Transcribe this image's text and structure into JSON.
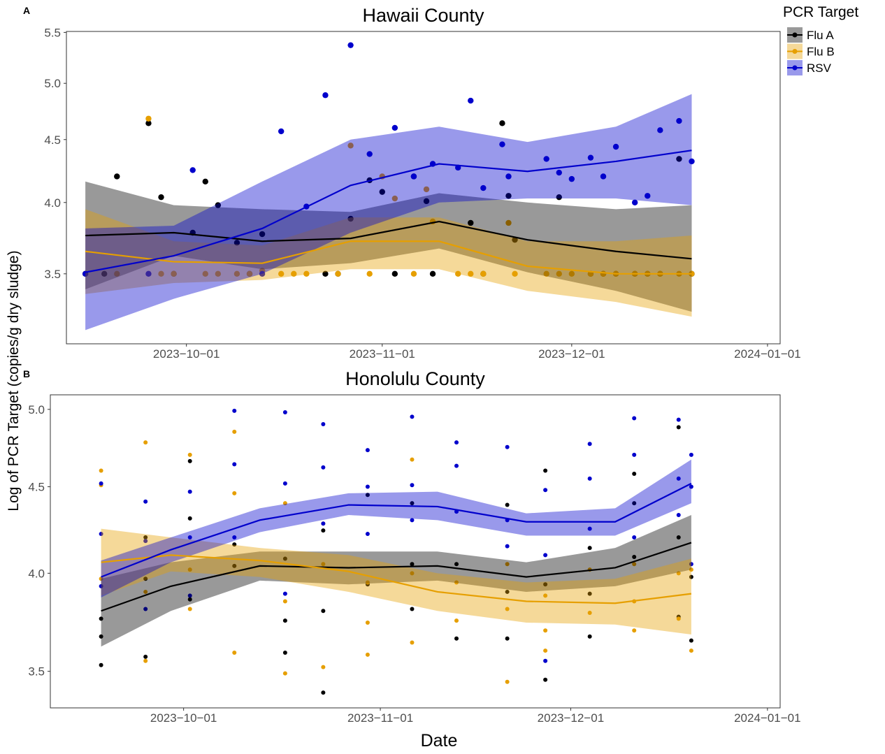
{
  "figure": {
    "ylabel": "Log of PCR Target (copies/g dry sludge)",
    "xlabel": "Date",
    "legend_title": "PCR Target",
    "legend_position": "right",
    "band_opacity": 0.4
  },
  "chart_data": [
    {
      "type": "scatter",
      "panel_label": "A",
      "title": "Hawaii County",
      "log_y": true,
      "grid": false,
      "xlim": [
        "2023-09-12",
        "2024-01-03"
      ],
      "ylim": [
        3.07,
        5.51
      ],
      "xticks": [
        {
          "value": "2023-10-01",
          "label": "2023−10−01"
        },
        {
          "value": "2023-11-01",
          "label": "2023−11−01"
        },
        {
          "value": "2023-12-01",
          "label": "2023−12−01"
        },
        {
          "value": "2024-01-01",
          "label": "2024−01−01"
        }
      ],
      "yticks": [
        3.5,
        {
          "value": 4,
          "label": "4.0"
        },
        4.5,
        {
          "value": 5,
          "label": "5.0"
        },
        5.5
      ],
      "series": [
        {
          "name": "Flu A",
          "color": "#000000",
          "x": [
            "2023-09-15",
            "2023-09-18",
            "2023-09-20",
            "2023-09-25",
            "2023-09-27",
            "2023-09-29",
            "2023-10-02",
            "2023-10-04",
            "2023-10-06",
            "2023-10-09",
            "2023-10-11",
            "2023-10-13",
            "2023-10-23",
            "2023-10-25",
            "2023-10-27",
            "2023-10-30",
            "2023-11-01",
            "2023-11-03",
            "2023-11-06",
            "2023-11-08",
            "2023-11-09",
            "2023-11-15",
            "2023-11-17",
            "2023-11-20",
            "2023-11-21",
            "2023-11-22",
            "2023-11-29",
            "2023-12-04",
            "2023-12-06",
            "2023-12-08",
            "2023-12-11",
            "2023-12-13",
            "2023-12-15",
            "2023-12-18",
            "2023-12-20"
          ],
          "values": [
            3.5,
            3.5,
            4.2,
            4.64,
            4.04,
            3.5,
            3.78,
            4.16,
            3.98,
            3.71,
            3.5,
            3.77,
            3.5,
            3.5,
            3.88,
            4.17,
            4.08,
            3.5,
            4.2,
            4.01,
            3.5,
            3.85,
            3.5,
            4.64,
            4.05,
            3.73,
            4.04,
            3.5,
            3.5,
            3.5,
            3.5,
            3.5,
            3.5,
            4.34,
            3.5
          ],
          "smooth": {
            "x": [
              "2023-09-15",
              "2023-09-29",
              "2023-10-13",
              "2023-10-27",
              "2023-11-10",
              "2023-11-24",
              "2023-12-08",
              "2023-12-20"
            ],
            "fit": [
              3.76,
              3.78,
              3.72,
              3.74,
              3.86,
              3.73,
              3.65,
              3.6
            ],
            "upper": [
              4.16,
              3.98,
              3.95,
              3.93,
              4.07,
              4.0,
              3.95,
              3.98
            ],
            "lower": [
              3.4,
              3.62,
              3.53,
              3.57,
              3.67,
              3.51,
              3.39,
              3.26
            ]
          }
        },
        {
          "name": "Flu B",
          "color": "#E69F00",
          "x": [
            "2023-09-15",
            "2023-09-20",
            "2023-09-25",
            "2023-09-27",
            "2023-09-29",
            "2023-10-04",
            "2023-10-06",
            "2023-10-09",
            "2023-10-11",
            "2023-10-13",
            "2023-10-16",
            "2023-10-18",
            "2023-10-20",
            "2023-10-25",
            "2023-10-27",
            "2023-10-30",
            "2023-11-01",
            "2023-11-03",
            "2023-11-06",
            "2023-11-08",
            "2023-11-09",
            "2023-11-13",
            "2023-11-15",
            "2023-11-17",
            "2023-11-21",
            "2023-11-22",
            "2023-11-27",
            "2023-11-29",
            "2023-12-01",
            "2023-12-04",
            "2023-12-06",
            "2023-12-08",
            "2023-12-11",
            "2023-12-13",
            "2023-12-15",
            "2023-12-18",
            "2023-12-20"
          ],
          "values": [
            3.5,
            3.5,
            4.68,
            3.5,
            3.5,
            3.5,
            3.5,
            3.5,
            3.5,
            3.52,
            3.5,
            3.5,
            3.5,
            3.5,
            4.45,
            3.5,
            4.2,
            4.03,
            3.5,
            4.1,
            3.86,
            3.5,
            3.5,
            3.5,
            3.85,
            3.5,
            3.5,
            3.5,
            3.5,
            3.5,
            3.5,
            3.5,
            3.5,
            3.5,
            3.5,
            3.5,
            3.5
          ],
          "smooth": {
            "x": [
              "2023-09-15",
              "2023-09-29",
              "2023-10-13",
              "2023-10-27",
              "2023-11-10",
              "2023-11-24",
              "2023-12-08",
              "2023-12-20"
            ],
            "fit": [
              3.65,
              3.58,
              3.57,
              3.72,
              3.72,
              3.55,
              3.5,
              3.5
            ],
            "upper": [
              3.95,
              3.72,
              3.69,
              3.89,
              3.89,
              3.72,
              3.72,
              3.76
            ],
            "lower": [
              3.37,
              3.44,
              3.46,
              3.53,
              3.53,
              3.39,
              3.32,
              3.23
            ]
          }
        },
        {
          "name": "RSV",
          "color": "#0000CC",
          "x": [
            "2023-09-15",
            "2023-09-25",
            "2023-10-02",
            "2023-10-13",
            "2023-10-16",
            "2023-10-20",
            "2023-10-23",
            "2023-10-27",
            "2023-10-30",
            "2023-11-03",
            "2023-11-06",
            "2023-11-09",
            "2023-11-13",
            "2023-11-15",
            "2023-11-17",
            "2023-11-20",
            "2023-11-21",
            "2023-11-27",
            "2023-11-29",
            "2023-12-01",
            "2023-12-04",
            "2023-12-06",
            "2023-12-08",
            "2023-12-11",
            "2023-12-13",
            "2023-12-15",
            "2023-12-18",
            "2023-12-20"
          ],
          "values": [
            3.5,
            3.5,
            4.25,
            3.5,
            4.57,
            3.97,
            4.89,
            5.37,
            4.38,
            4.6,
            4.2,
            4.3,
            4.27,
            4.84,
            4.11,
            4.46,
            4.2,
            4.34,
            4.23,
            4.18,
            4.35,
            4.2,
            4.44,
            4.0,
            4.05,
            4.58,
            4.66,
            4.32
          ],
          "smooth": {
            "x": [
              "2023-09-15",
              "2023-09-29",
              "2023-10-13",
              "2023-10-27",
              "2023-11-10",
              "2023-11-24",
              "2023-12-08",
              "2023-12-20"
            ],
            "fit": [
              3.51,
              3.62,
              3.81,
              4.13,
              4.3,
              4.24,
              4.32,
              4.41
            ],
            "upper": [
              3.81,
              3.83,
              4.16,
              4.5,
              4.61,
              4.48,
              4.61,
              4.9
            ],
            "lower": [
              3.15,
              3.34,
              3.5,
              3.78,
              4.0,
              4.03,
              4.03,
              3.98
            ]
          }
        }
      ]
    },
    {
      "type": "scatter",
      "panel_label": "B",
      "title": "Honolulu County",
      "log_y": true,
      "grid": false,
      "xlim": [
        "2023-09-10",
        "2024-01-03"
      ],
      "ylim": [
        3.33,
        5.1
      ],
      "xticks": [
        {
          "value": "2023-10-01",
          "label": "2023−10−01"
        },
        {
          "value": "2023-11-01",
          "label": "2023−11−01"
        },
        {
          "value": "2023-12-01",
          "label": "2023−12−01"
        },
        {
          "value": "2024-01-01",
          "label": "2024−01−01"
        }
      ],
      "yticks": [
        3.5,
        {
          "value": 4,
          "label": "4.0"
        },
        4.5,
        {
          "value": 5,
          "label": "5.0"
        }
      ],
      "series": [
        {
          "name": "Flu A",
          "color": "#000000",
          "x": [
            "2023-09-18",
            "2023-09-18",
            "2023-09-18",
            "2023-09-25",
            "2023-09-25",
            "2023-09-25",
            "2023-10-02",
            "2023-10-02",
            "2023-10-02",
            "2023-10-09",
            "2023-10-09",
            "2023-10-17",
            "2023-10-17",
            "2023-10-17",
            "2023-10-23",
            "2023-10-23",
            "2023-10-23",
            "2023-10-30",
            "2023-10-30",
            "2023-11-06",
            "2023-11-06",
            "2023-11-06",
            "2023-11-13",
            "2023-11-13",
            "2023-11-21",
            "2023-11-21",
            "2023-11-21",
            "2023-11-27",
            "2023-11-27",
            "2023-11-27",
            "2023-12-04",
            "2023-12-04",
            "2023-12-04",
            "2023-12-11",
            "2023-12-11",
            "2023-12-11",
            "2023-12-18",
            "2023-12-18",
            "2023-12-18",
            "2023-12-20",
            "2023-12-20"
          ],
          "values": [
            3.67,
            3.76,
            3.53,
            4.2,
            3.97,
            3.57,
            4.31,
            4.66,
            3.86,
            4.16,
            4.04,
            3.59,
            4.08,
            3.75,
            3.8,
            3.4,
            4.24,
            3.94,
            4.45,
            4.05,
            3.81,
            4.4,
            3.66,
            4.05,
            4.39,
            3.9,
            3.66,
            3.46,
            4.6,
            3.94,
            3.67,
            4.14,
            3.89,
            4.4,
            4.58,
            4.09,
            4.88,
            4.2,
            3.77,
            3.65,
            3.98
          ],
          "smooth": {
            "x": [
              "2023-09-18",
              "2023-09-29",
              "2023-10-13",
              "2023-10-27",
              "2023-11-10",
              "2023-11-24",
              "2023-12-08",
              "2023-12-20"
            ],
            "fit": [
              3.8,
              3.93,
              4.04,
              4.03,
              4.04,
              3.98,
              4.03,
              4.17
            ],
            "upper": [
              3.97,
              4.06,
              4.12,
              4.12,
              4.12,
              4.06,
              4.14,
              4.33
            ],
            "lower": [
              3.62,
              3.8,
              3.96,
              3.94,
              3.96,
              3.9,
              3.93,
              4.02
            ]
          }
        },
        {
          "name": "Flu B",
          "color": "#E69F00",
          "x": [
            "2023-09-18",
            "2023-09-18",
            "2023-09-18",
            "2023-09-25",
            "2023-09-25",
            "2023-09-25",
            "2023-10-02",
            "2023-10-02",
            "2023-10-02",
            "2023-10-09",
            "2023-10-09",
            "2023-10-09",
            "2023-10-17",
            "2023-10-17",
            "2023-10-17",
            "2023-10-23",
            "2023-10-23",
            "2023-10-23",
            "2023-10-30",
            "2023-10-30",
            "2023-10-30",
            "2023-11-06",
            "2023-11-06",
            "2023-11-06",
            "2023-11-13",
            "2023-11-13",
            "2023-11-21",
            "2023-11-21",
            "2023-11-21",
            "2023-11-27",
            "2023-11-27",
            "2023-11-27",
            "2023-12-04",
            "2023-12-04",
            "2023-12-11",
            "2023-12-11",
            "2023-12-11",
            "2023-12-18",
            "2023-12-18",
            "2023-12-20",
            "2023-12-20"
          ],
          "values": [
            4.51,
            4.6,
            3.97,
            4.78,
            3.9,
            3.55,
            4.7,
            3.81,
            4.02,
            4.85,
            3.59,
            4.46,
            4.4,
            3.85,
            3.49,
            4.05,
            3.52,
            4.28,
            3.58,
            3.95,
            3.74,
            4.67,
            4.0,
            3.64,
            3.95,
            3.75,
            3.45,
            3.81,
            4.05,
            3.7,
            3.88,
            3.6,
            4.02,
            3.79,
            3.85,
            3.7,
            4.05,
            3.76,
            4.0,
            3.6,
            4.02
          ],
          "smooth": {
            "x": [
              "2023-09-18",
              "2023-09-29",
              "2023-10-13",
              "2023-10-27",
              "2023-11-10",
              "2023-11-24",
              "2023-12-08",
              "2023-12-20"
            ],
            "fit": [
              4.06,
              4.1,
              4.07,
              4.01,
              3.9,
              3.85,
              3.84,
              3.89
            ],
            "upper": [
              4.25,
              4.2,
              4.14,
              4.1,
              4.0,
              3.95,
              3.97,
              4.08
            ],
            "lower": [
              3.88,
              4.01,
              3.98,
              3.9,
              3.8,
              3.74,
              3.73,
              3.68
            ]
          }
        },
        {
          "name": "RSV",
          "color": "#0000CC",
          "x": [
            "2023-09-18",
            "2023-09-18",
            "2023-09-18",
            "2023-09-25",
            "2023-09-25",
            "2023-09-25",
            "2023-10-02",
            "2023-10-02",
            "2023-10-02",
            "2023-10-09",
            "2023-10-09",
            "2023-10-09",
            "2023-10-17",
            "2023-10-17",
            "2023-10-17",
            "2023-10-23",
            "2023-10-23",
            "2023-10-23",
            "2023-10-30",
            "2023-10-30",
            "2023-10-30",
            "2023-11-06",
            "2023-11-06",
            "2023-11-06",
            "2023-11-13",
            "2023-11-13",
            "2023-11-13",
            "2023-11-21",
            "2023-11-21",
            "2023-11-21",
            "2023-11-27",
            "2023-11-27",
            "2023-11-27",
            "2023-12-04",
            "2023-12-04",
            "2023-12-04",
            "2023-12-11",
            "2023-12-11",
            "2023-12-11",
            "2023-12-18",
            "2023-12-18",
            "2023-12-18",
            "2023-12-20",
            "2023-12-20",
            "2023-12-20"
          ],
          "values": [
            4.22,
            3.93,
            4.52,
            4.41,
            4.18,
            3.81,
            4.47,
            4.2,
            3.88,
            4.99,
            4.64,
            4.2,
            4.98,
            4.52,
            3.89,
            4.9,
            4.62,
            4.28,
            4.73,
            4.5,
            4.22,
            4.95,
            4.51,
            4.3,
            4.78,
            4.63,
            4.35,
            4.75,
            4.3,
            4.15,
            4.48,
            4.1,
            3.55,
            4.77,
            4.55,
            4.25,
            4.94,
            4.7,
            4.2,
            4.93,
            4.55,
            4.33,
            4.7,
            4.5,
            4.05
          ],
          "smooth": {
            "x": [
              "2023-09-18",
              "2023-09-29",
              "2023-10-13",
              "2023-10-27",
              "2023-11-10",
              "2023-11-24",
              "2023-12-08",
              "2023-12-20"
            ],
            "fit": [
              3.98,
              4.13,
              4.3,
              4.39,
              4.38,
              4.29,
              4.29,
              4.52
            ],
            "upper": [
              4.07,
              4.2,
              4.37,
              4.46,
              4.47,
              4.34,
              4.37,
              4.67
            ],
            "lower": [
              3.87,
              4.06,
              4.23,
              4.33,
              4.3,
              4.21,
              4.21,
              4.4
            ]
          }
        }
      ]
    }
  ]
}
